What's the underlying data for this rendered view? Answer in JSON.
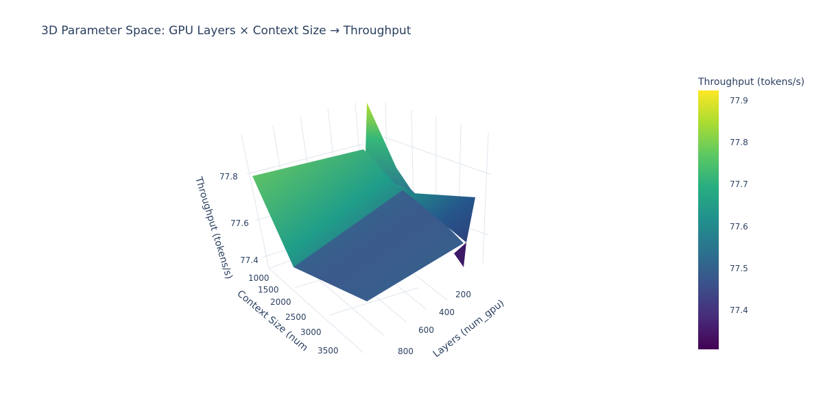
{
  "chart_data": {
    "type": "surface3d",
    "title": "3D Parameter Space: GPU Layers × Context Size → Throughput",
    "x_axis": {
      "label": "GPU Layers (num_gpu)",
      "visible_label": "Layers (num_gpu)",
      "ticks": [
        "200",
        "400",
        "600",
        "800"
      ]
    },
    "y_axis": {
      "label": "Context Size (num_ctx)",
      "visible_label": "Context Size (num",
      "ticks": [
        "1000",
        "1500",
        "2000",
        "2500",
        "3000",
        "3500"
      ]
    },
    "z_axis": {
      "label": "Throughput (tokens/s)",
      "ticks": [
        "77.4",
        "77.6",
        "77.8"
      ]
    },
    "colorbar": {
      "title": "Throughput (tokens/s)",
      "colorscale": "Viridis",
      "range": [
        77.31,
        77.93
      ],
      "ticks": [
        "77.9",
        "77.8",
        "77.7",
        "77.6",
        "77.5",
        "77.4"
      ]
    },
    "surface_corners": [
      {
        "gpu_layers": 999,
        "context": 1024,
        "throughput": 77.78
      },
      {
        "gpu_layers": 999,
        "context": 4096,
        "throughput": 77.35
      },
      {
        "gpu_layers": 0,
        "context": 4096,
        "throughput": 77.55
      },
      {
        "gpu_layers": 0,
        "context": 1024,
        "throughput": 77.72
      },
      {
        "gpu_layers": 100,
        "context": 1024,
        "throughput": 77.93
      }
    ]
  }
}
